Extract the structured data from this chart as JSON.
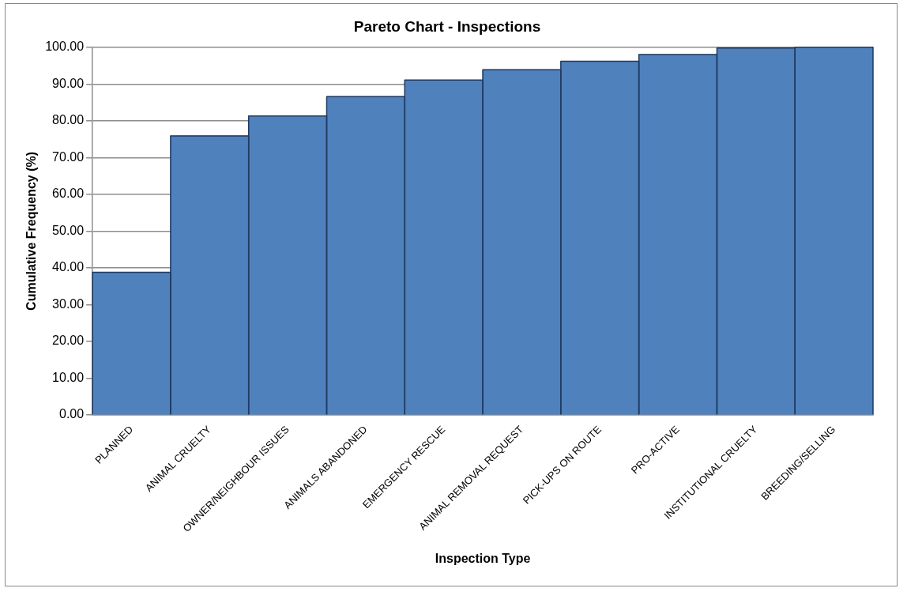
{
  "chart_data": {
    "type": "bar",
    "title": "Pareto Chart - Inspections",
    "xlabel": "Inspection Type",
    "ylabel": "Cumulative Frequency (%)",
    "categories": [
      "PLANNED",
      "ANIMAL CRUELTY",
      "OWNER/NEIGHBOUR ISSUES",
      "ANIMALS ABANDONED",
      "EMERGENCY RESCUE",
      "ANIMAL REMOVAL REQUEST",
      "PICK-UPS ON ROUTE",
      "PRO-ACTIVE",
      "INSTITUTIONAL CRUELTY",
      "BREEDING/SELLING"
    ],
    "values": [
      38.8,
      75.9,
      81.3,
      86.6,
      91.1,
      93.9,
      96.2,
      98.0,
      99.8,
      100
    ],
    "color": "#4f81bd",
    "ylim": [
      0,
      100
    ],
    "yticks": [
      {
        "value": 0,
        "label": "0.00"
      },
      {
        "value": 10,
        "label": "10.00"
      },
      {
        "value": 20,
        "label": "20.00"
      },
      {
        "value": 30,
        "label": "30.00"
      },
      {
        "value": 40,
        "label": "40.00"
      },
      {
        "value": 50,
        "label": "50.00"
      },
      {
        "value": 60,
        "label": "60.00"
      },
      {
        "value": 70,
        "label": "70.00"
      },
      {
        "value": 80,
        "label": "80.00"
      },
      {
        "value": 90,
        "label": "90.00"
      },
      {
        "value": 100,
        "label": "100.00"
      }
    ],
    "grid": "y",
    "legend": false
  }
}
